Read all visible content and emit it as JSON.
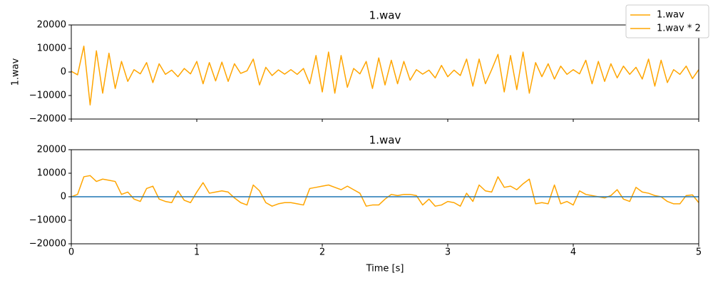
{
  "chart_data": [
    {
      "type": "line",
      "title": "1.wav",
      "ylabel": "1.wav",
      "sharex": true,
      "legend": "upper right",
      "xlim": [
        0,
        5
      ],
      "xticks": [
        0,
        1,
        2,
        3,
        4,
        5
      ],
      "ylim": [
        -20000,
        20000
      ],
      "yticks": [
        {
          "value": -20000,
          "label": "−20000"
        },
        {
          "value": -10000,
          "label": "−10000"
        },
        0,
        10000,
        20000
      ],
      "series": [
        {
          "name": "1.wav",
          "color": "#ffa500",
          "x": [
            0,
            0.05,
            0.1,
            0.15,
            0.2,
            0.25,
            0.3,
            0.35,
            0.4,
            0.45,
            0.5,
            0.55,
            0.6,
            0.65,
            0.7,
            0.75,
            0.8,
            0.85,
            0.9,
            0.95,
            1,
            1.05,
            1.1,
            1.15,
            1.2,
            1.25,
            1.3,
            1.35,
            1.4,
            1.45,
            1.5,
            1.55,
            1.6,
            1.65,
            1.7,
            1.75,
            1.8,
            1.85,
            1.9,
            1.95,
            2,
            2.05,
            2.1,
            2.15,
            2.2,
            2.25,
            2.3,
            2.35,
            2.4,
            2.45,
            2.5,
            2.55,
            2.6,
            2.65,
            2.7,
            2.75,
            2.8,
            2.85,
            2.9,
            2.95,
            3,
            3.05,
            3.1,
            3.15,
            3.2,
            3.25,
            3.3,
            3.35,
            3.4,
            3.45,
            3.5,
            3.55,
            3.6,
            3.65,
            3.7,
            3.75,
            3.8,
            3.85,
            3.9,
            3.95,
            4,
            4.05,
            4.1,
            4.15,
            4.2,
            4.25,
            4.3,
            4.35,
            4.4,
            4.45,
            4.5,
            4.55,
            4.6,
            4.65,
            4.7,
            4.75,
            4.8,
            4.85,
            4.9,
            4.95,
            5
          ],
          "values": [
            300,
            -1200,
            11000,
            -14000,
            9000,
            -9000,
            8000,
            -7000,
            4500,
            -4000,
            1000,
            -800,
            4000,
            -4500,
            3500,
            -1000,
            800,
            -2000,
            1500,
            -800,
            4500,
            -5000,
            4000,
            -3800,
            4200,
            -4000,
            3500,
            -600,
            500,
            5500,
            -5500,
            2000,
            -1500,
            900,
            -900,
            1000,
            -1000,
            1500,
            -5000,
            7000,
            -8500,
            8500,
            -9000,
            7000,
            -6500,
            1500,
            -800,
            4500,
            -7000,
            6000,
            -5500,
            5000,
            -5000,
            4500,
            -3500,
            1000,
            -900,
            800,
            -2500,
            2800,
            -2000,
            800,
            -1500,
            5500,
            -6000,
            5500,
            -5000,
            1000,
            7500,
            -8500,
            7000,
            -7500,
            8500,
            -9000,
            4000,
            -2000,
            3500,
            -3000,
            2500,
            -1000,
            1000,
            -800,
            5000,
            -5000,
            4500,
            -4000,
            3500,
            -2500,
            2500,
            -1000,
            2000,
            -3000,
            5500,
            -6000,
            5000,
            -4500,
            1000,
            -1000,
            2500,
            -2800,
            1000
          ]
        }
      ]
    },
    {
      "type": "line",
      "title": "1.wav",
      "xlabel": "Time [s]",
      "xlim": [
        0,
        5
      ],
      "xticks": [
        0,
        1,
        2,
        3,
        4,
        5
      ],
      "ylim": [
        -20000,
        20000
      ],
      "yticks": [
        {
          "value": -20000,
          "label": "−20000"
        },
        {
          "value": -10000,
          "label": "−10000"
        },
        0,
        10000,
        20000
      ],
      "series": [
        {
          "name": "1.wav * 2",
          "color": "#ffa500",
          "x": [
            0,
            0.05,
            0.1,
            0.15,
            0.2,
            0.25,
            0.3,
            0.35,
            0.4,
            0.45,
            0.5,
            0.55,
            0.6,
            0.65,
            0.7,
            0.75,
            0.8,
            0.85,
            0.9,
            0.95,
            1,
            1.05,
            1.1,
            1.15,
            1.2,
            1.25,
            1.3,
            1.35,
            1.4,
            1.45,
            1.5,
            1.55,
            1.6,
            1.65,
            1.7,
            1.75,
            1.8,
            1.85,
            1.9,
            1.95,
            2,
            2.05,
            2.1,
            2.15,
            2.2,
            2.25,
            2.3,
            2.35,
            2.4,
            2.45,
            2.5,
            2.55,
            2.6,
            2.65,
            2.7,
            2.75,
            2.8,
            2.85,
            2.9,
            2.95,
            3,
            3.05,
            3.1,
            3.15,
            3.2,
            3.25,
            3.3,
            3.35,
            3.4,
            3.45,
            3.5,
            3.55,
            3.6,
            3.65,
            3.7,
            3.75,
            3.8,
            3.85,
            3.9,
            3.95,
            4,
            4.05,
            4.1,
            4.15,
            4.2,
            4.25,
            4.3,
            4.35,
            4.4,
            4.45,
            4.5,
            4.55,
            4.6,
            4.65,
            4.7,
            4.75,
            4.8,
            4.85,
            4.9,
            4.95,
            5
          ],
          "values": [
            0,
            1000,
            8500,
            9000,
            6500,
            7500,
            7000,
            6500,
            1000,
            2000,
            -1000,
            -2000,
            3500,
            4500,
            -1000,
            -2000,
            -2500,
            2500,
            -1500,
            -2500,
            2000,
            6000,
            1500,
            2000,
            2500,
            2000,
            -500,
            -2500,
            -3500,
            5000,
            2500,
            -2500,
            -4000,
            -3000,
            -2500,
            -2500,
            -3000,
            -3500,
            3500,
            4000,
            4500,
            5000,
            4000,
            3000,
            4500,
            3000,
            1500,
            -4000,
            -3500,
            -3500,
            -1000,
            1000,
            500,
            1000,
            1000,
            500,
            -3500,
            -1000,
            -4000,
            -3500,
            -2000,
            -2500,
            -4000,
            1500,
            -2000,
            5000,
            2500,
            2000,
            8500,
            4000,
            4500,
            3000,
            5500,
            7500,
            -3000,
            -2500,
            -3000,
            5000,
            -3000,
            -2000,
            -3500,
            2500,
            1000,
            500,
            0,
            -500,
            500,
            3000,
            -1000,
            -2000,
            4000,
            2000,
            1500,
            500,
            0,
            -2000,
            -3000,
            -3000,
            500,
            800,
            -2500
          ]
        },
        {
          "color": "#1f77b4",
          "x": [
            0,
            5
          ],
          "values": [
            0,
            0
          ]
        }
      ]
    }
  ]
}
